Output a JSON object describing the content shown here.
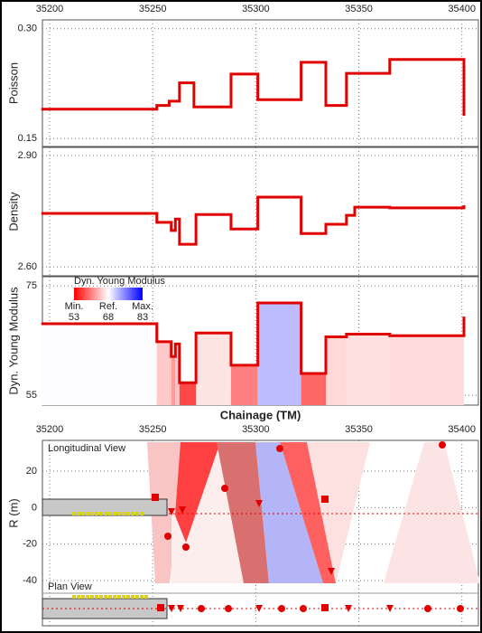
{
  "chart_data": [
    {
      "type": "line",
      "drawstyle": "steps-post",
      "ylabel": "Poisson",
      "xaxis": "top",
      "xlim": [
        35196.5,
        35408
      ],
      "xticks": [
        35200,
        35250,
        35300,
        35350,
        35400
      ],
      "ylim": [
        0.139,
        0.312
      ],
      "yticks": [
        {
          "value": 0.3,
          "label": "0.30"
        },
        0.15
      ],
      "grid": true,
      "color": "#e00000",
      "x": [
        35196,
        35252,
        35258,
        35263,
        35270,
        35288,
        35301,
        35322,
        35334,
        35344,
        35365,
        35401
      ],
      "values": [
        0.19,
        0.195,
        0.201,
        0.226,
        0.193,
        0.238,
        0.203,
        0.254,
        0.195,
        0.239,
        0.258,
        0.181
      ]
    },
    {
      "type": "line",
      "drawstyle": "steps-post",
      "ylabel": "Density",
      "xlim": [
        35196.5,
        35408
      ],
      "xticks": [
        35200,
        35250,
        35300,
        35350,
        35400
      ],
      "ylim": [
        2.576,
        2.922
      ],
      "yticks": [
        {
          "value": 2.9,
          "label": "2.90"
        },
        {
          "value": 2.6,
          "label": "2.60"
        }
      ],
      "grid": true,
      "color": "#e00000",
      "x": [
        35196,
        35252,
        35259,
        35261,
        35263,
        35271,
        35288,
        35301,
        35322,
        35334,
        35344,
        35348,
        35365,
        35401
      ],
      "values": [
        2.744,
        2.72,
        2.698,
        2.729,
        2.661,
        2.741,
        2.702,
        2.788,
        2.69,
        2.715,
        2.739,
        2.761,
        2.759,
        2.766
      ]
    },
    {
      "type": "steparea",
      "drawstyle": "steps-post",
      "ylabel": "Dyn. Young Modulus",
      "xlim": [
        35196.5,
        35408
      ],
      "xticks": [
        35200,
        35250,
        35300,
        35350,
        35400
      ],
      "ylim": [
        53.2,
        76.7
      ],
      "yticks": [
        75,
        55
      ],
      "grid": true,
      "color": "#e00000",
      "x": [
        35196,
        35252,
        35259,
        35261,
        35263,
        35271,
        35288,
        35301,
        35322,
        35334,
        35344,
        35365,
        35401
      ],
      "values": [
        68.1,
        64.8,
        62.1,
        64.4,
        57.3,
        66.4,
        60.5,
        71.9,
        59.0,
        65.7,
        66.2,
        65.9,
        69.4
      ],
      "legend": {
        "title": "Dyn. Young Modulus",
        "labels": [
          "Min.",
          "Ref.",
          "Max."
        ],
        "values": [
          53,
          68,
          83
        ],
        "colors": [
          "#ff0000",
          "#ffffff",
          "#0000ff"
        ]
      }
    },
    {
      "type": "section",
      "xlabel": "Chainage (TM)",
      "ylabel": "R (m)",
      "xaxis": "top",
      "xlim": [
        35196.5,
        35408
      ],
      "xticks": [
        35200,
        35250,
        35300,
        35350,
        35400
      ],
      "ylim": [
        -43,
        36.9
      ],
      "yticks": [
        20,
        0,
        -20,
        -40
      ],
      "annotations": [
        "Longitudinal View",
        "Plan View"
      ]
    }
  ]
}
